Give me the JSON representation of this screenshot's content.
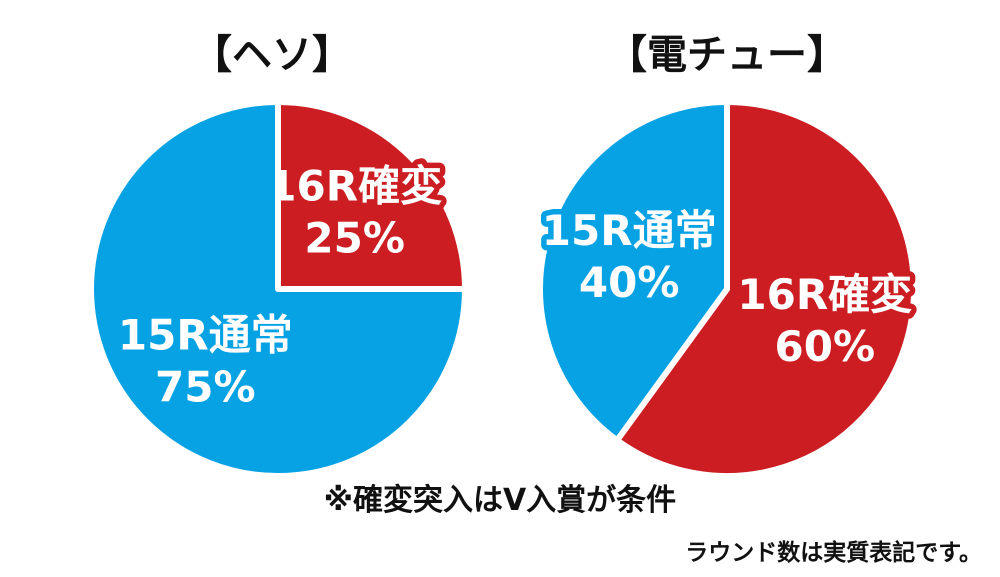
{
  "colors": {
    "kakuhen": "#cc1d22",
    "tsujo": "#07a2e4",
    "background": "#ffffff",
    "text": "#111111"
  },
  "note": "※確変突入はV入賞が条件",
  "footnote": "ラウンド数は実質表記です。",
  "chart_data": [
    {
      "type": "pie",
      "title": "【ヘソ】",
      "slices": [
        {
          "label": "16R確変",
          "value": 25,
          "value_label": "25%",
          "color": "#cc1d22"
        },
        {
          "label": "15R通常",
          "value": 75,
          "value_label": "75%",
          "color": "#07a2e4"
        }
      ]
    },
    {
      "type": "pie",
      "title": "【電チュー】",
      "slices": [
        {
          "label": "16R確変",
          "value": 60,
          "value_label": "60%",
          "color": "#cc1d22"
        },
        {
          "label": "15R通常",
          "value": 40,
          "value_label": "40%",
          "color": "#07a2e4"
        }
      ]
    }
  ]
}
